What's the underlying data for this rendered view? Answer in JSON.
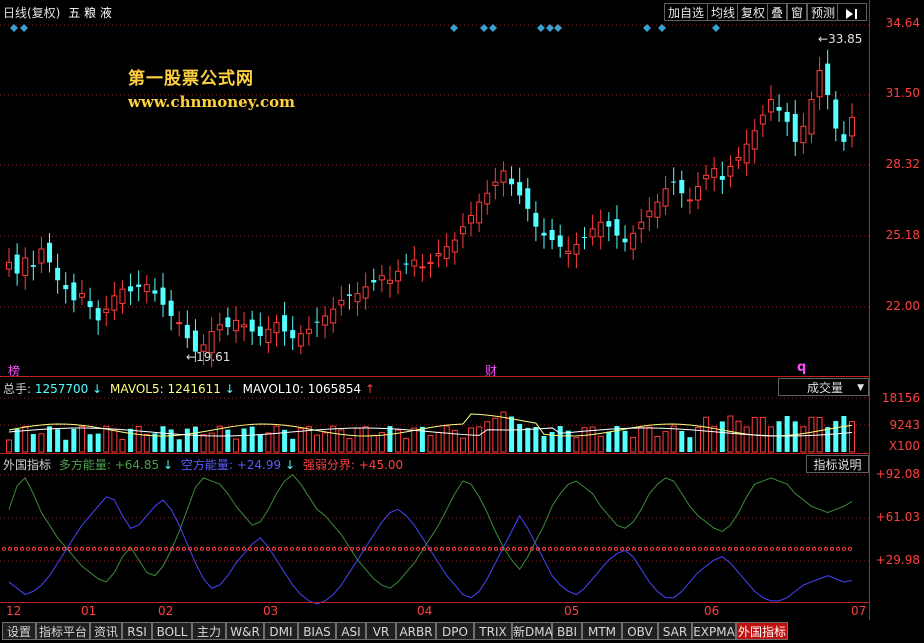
{
  "header": {
    "period": "日线(复权)",
    "stock_name": "五 粮 液"
  },
  "toolbar": {
    "items": [
      "加自选",
      "均线",
      "复权",
      "叠",
      "窗",
      "预测"
    ],
    "arrow_icon": "arrow-right-bar-icon"
  },
  "watermark": {
    "line1": "第一股票公式网",
    "line2": "www.chnmoney.com"
  },
  "price_axis": [
    "34.64",
    "31.50",
    "28.32",
    "25.18",
    "22.00"
  ],
  "price_annotations": {
    "high": "33.85",
    "low": "19.61"
  },
  "markers": {
    "left": "榜",
    "mid": "财",
    "right": "q"
  },
  "volume_panel": {
    "total_label": "总手:",
    "total_value": "1257700",
    "mavol5_label": "MAVOL5:",
    "mavol5_value": "1241611",
    "mavol10_label": "MAVOL10:",
    "mavol10_value": "1065854",
    "selector": "成交量",
    "axis": [
      "18156",
      "9243",
      "X100"
    ]
  },
  "indicator_panel": {
    "name": "外国指标",
    "bull_label": "多方能量:",
    "bull_value": "+64.85",
    "bear_label": "空方能量:",
    "bear_value": "+24.99",
    "line_label": "强弱分界:",
    "line_value": "+45.00",
    "help": "指标说明",
    "axis": [
      "+92.08",
      "+61.03",
      "+29.98"
    ]
  },
  "time_axis": [
    "12",
    "01",
    "02",
    "03",
    "04",
    "05",
    "06",
    "07"
  ],
  "bottom_tabs": [
    "设置",
    "指标平台",
    "资讯",
    "RSI",
    "BOLL",
    "主力",
    "W&R",
    "DMI",
    "BIAS",
    "ASI",
    "VR",
    "ARBR",
    "DPO",
    "TRIX",
    "新DMA",
    "BBI",
    "MTM",
    "OBV",
    "SAR",
    "EXPMA",
    "外国指标"
  ],
  "colors": {
    "up": "#ff3b3b",
    "down": "#54ffff",
    "axis_red": "#ff4040",
    "bull_line": "#3c8c3c",
    "bear_line": "#4646ff",
    "watermark": "#ffd040"
  }
}
